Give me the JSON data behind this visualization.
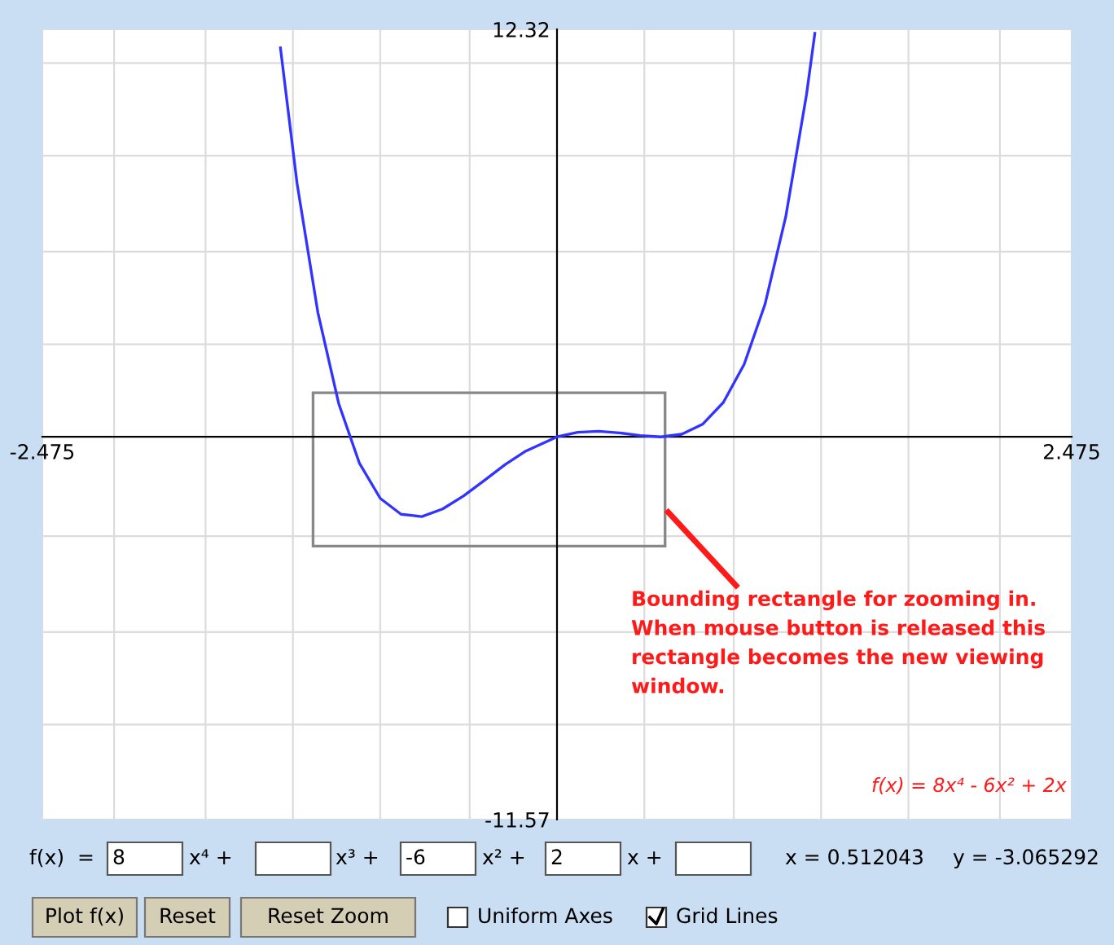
{
  "chart_data": {
    "type": "line",
    "x": [
      -1.33,
      -1.25,
      -1.15,
      -1.05,
      -0.95,
      -0.85,
      -0.75,
      -0.65,
      -0.55,
      -0.45,
      -0.35,
      -0.25,
      -0.15,
      0,
      0.1,
      0.2,
      0.3,
      0.4,
      0.5,
      0.6,
      0.7,
      0.8,
      0.9,
      1.0,
      1.1,
      1.2,
      1.24
    ],
    "series": [
      {
        "color": "#3333ff",
        "values": [
          11.76,
          7.66,
          3.76,
          1.01,
          -0.8,
          -1.86,
          -2.34,
          -2.41,
          -2.18,
          -1.79,
          -1.32,
          -0.84,
          -0.43,
          0,
          0.14,
          0.17,
          0.12,
          0.04,
          0.0,
          0.08,
          0.38,
          1.04,
          2.19,
          4.0,
          6.65,
          10.35,
          12.2
        ]
      }
    ],
    "xlim": [
      -2.475,
      2.475
    ],
    "ylim": [
      -11.57,
      12.32
    ],
    "xticks": [
      -2.475,
      {
        "value": -2.13,
        "label": null
      },
      {
        "value": -1.69,
        "label": null
      },
      {
        "value": -1.27,
        "label": null
      },
      {
        "value": -0.85,
        "label": null
      },
      {
        "value": -0.42,
        "label": null
      },
      {
        "value": 0.42,
        "label": null
      },
      {
        "value": 0.85,
        "label": null
      },
      {
        "value": 1.27,
        "label": null
      },
      {
        "value": 1.69,
        "label": null
      },
      {
        "value": 2.13,
        "label": null
      },
      2.475
    ],
    "yticks": [
      -11.57,
      {
        "value": -8.7,
        "label": null
      },
      {
        "value": -5.9,
        "label": null
      },
      {
        "value": -3.0,
        "label": null
      },
      {
        "value": 2.8,
        "label": null
      },
      {
        "value": 5.6,
        "label": null
      },
      {
        "value": 8.5,
        "label": null
      },
      {
        "value": 11.3,
        "label": null
      },
      12.32
    ],
    "grid": true,
    "marker": "none",
    "line_style": "solid",
    "annotations": [
      "Bounding rectangle for zooming in.\nWhen mouse button is released this\nrectangle becomes the new viewing\nwindow.",
      "f(x) = 8x⁴ - 6x² + 2x",
      "f(x)  =",
      "8",
      "x⁴ +",
      "x³ +",
      "-6",
      "x² +",
      "2",
      "x +",
      "x = 0.512043",
      "y = -3.065292",
      "Plot f(x)",
      "Reset",
      "Reset Zoom",
      "Uniform Axes",
      "Grid Lines"
    ]
  }
}
